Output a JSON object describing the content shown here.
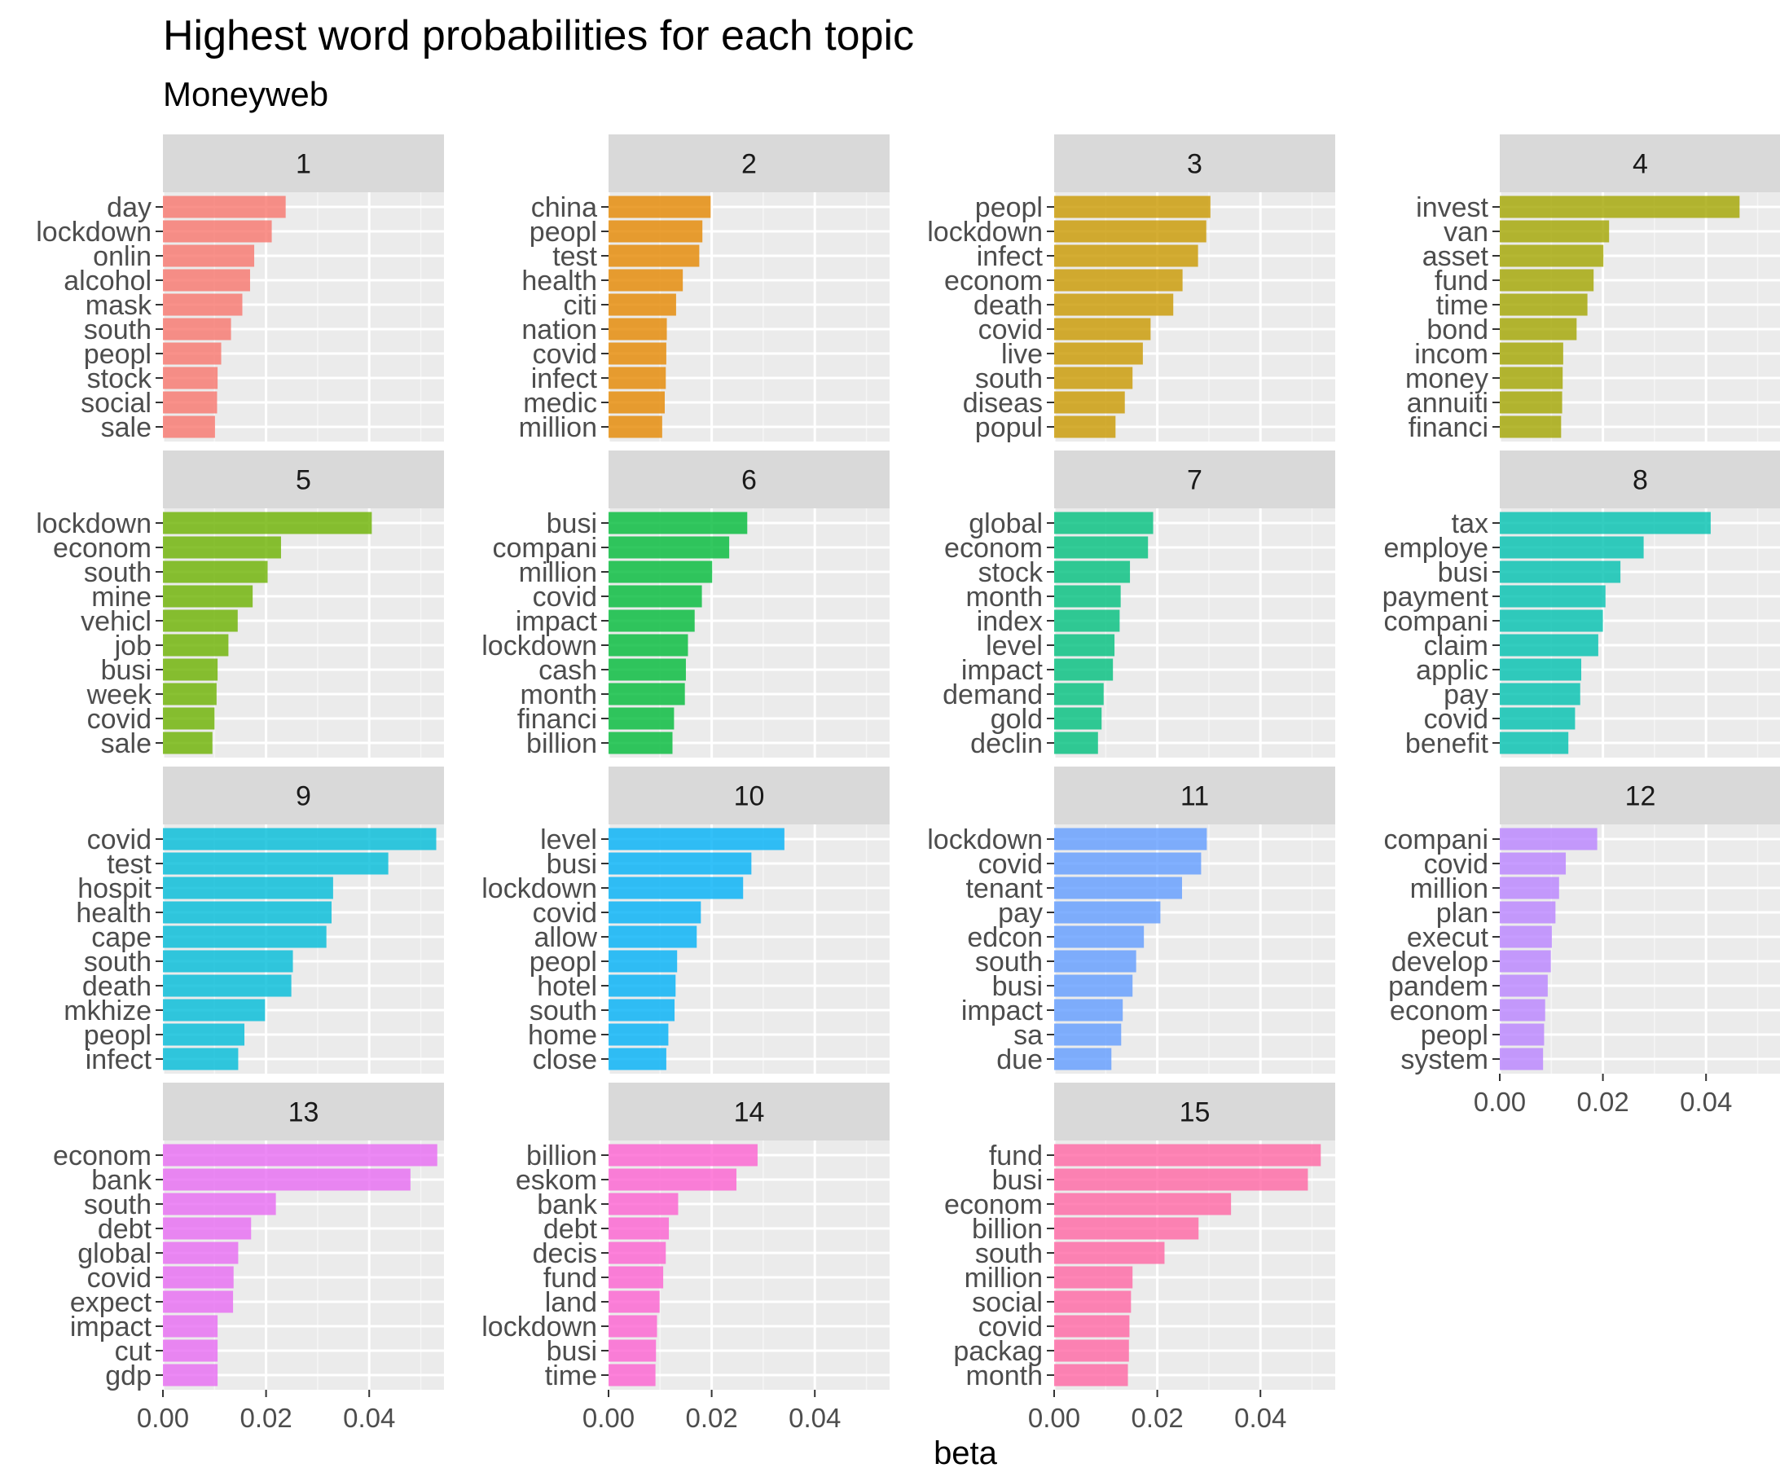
{
  "title": "Highest word probabilities for each topic",
  "subtitle": "Moneyweb",
  "chart_data": {
    "type": "bar",
    "orientation": "horizontal",
    "facet": "topic",
    "xlabel": "beta",
    "ylabel": "",
    "xlim": [
      0,
      0.0545
    ],
    "xticks": [
      0.0,
      0.02,
      0.04
    ],
    "xtick_labels": [
      "0.00",
      "0.02",
      "0.04"
    ],
    "grid": true,
    "facets": [
      {
        "topic": "1",
        "color": "#F8766D",
        "terms": [
          "day",
          "lockdown",
          "onlin",
          "alcohol",
          "mask",
          "south",
          "peopl",
          "stock",
          "social",
          "sale"
        ],
        "values": [
          0.0238,
          0.0211,
          0.0177,
          0.0169,
          0.0154,
          0.0132,
          0.0113,
          0.0106,
          0.0105,
          0.0101
        ]
      },
      {
        "topic": "2",
        "color": "#E58700",
        "terms": [
          "china",
          "peopl",
          "test",
          "health",
          "citi",
          "nation",
          "covid",
          "infect",
          "medic",
          "million"
        ],
        "values": [
          0.0198,
          0.0182,
          0.0176,
          0.0144,
          0.0131,
          0.0113,
          0.0112,
          0.0111,
          0.0109,
          0.0104
        ]
      },
      {
        "topic": "3",
        "color": "#C99800",
        "terms": [
          "peopl",
          "lockdown",
          "infect",
          "econom",
          "death",
          "covid",
          "live",
          "south",
          "diseas",
          "popul"
        ],
        "values": [
          0.0303,
          0.0295,
          0.0279,
          0.0249,
          0.0231,
          0.0187,
          0.0172,
          0.0152,
          0.0137,
          0.0119
        ]
      },
      {
        "topic": "4",
        "color": "#A3A500",
        "terms": [
          "invest",
          "van",
          "asset",
          "fund",
          "time",
          "bond",
          "incom",
          "money",
          "annuiti",
          "financi"
        ],
        "values": [
          0.0465,
          0.0212,
          0.0201,
          0.0182,
          0.017,
          0.0149,
          0.0123,
          0.0122,
          0.0121,
          0.0119
        ]
      },
      {
        "topic": "5",
        "color": "#6BB100",
        "terms": [
          "lockdown",
          "econom",
          "south",
          "mine",
          "vehicl",
          "job",
          "busi",
          "week",
          "covid",
          "sale"
        ],
        "values": [
          0.0405,
          0.0229,
          0.0203,
          0.0174,
          0.0145,
          0.0127,
          0.0106,
          0.0104,
          0.01,
          0.0096
        ]
      },
      {
        "topic": "6",
        "color": "#00BA38",
        "terms": [
          "busi",
          "compani",
          "million",
          "covid",
          "impact",
          "lockdown",
          "cash",
          "month",
          "financi",
          "billion"
        ],
        "values": [
          0.0269,
          0.0234,
          0.0201,
          0.0181,
          0.0167,
          0.0154,
          0.015,
          0.0148,
          0.0127,
          0.0124
        ]
      },
      {
        "topic": "7",
        "color": "#00BF7D",
        "terms": [
          "global",
          "econom",
          "stock",
          "month",
          "index",
          "level",
          "impact",
          "demand",
          "gold",
          "declin"
        ],
        "values": [
          0.0192,
          0.0182,
          0.0147,
          0.0129,
          0.0127,
          0.0117,
          0.0114,
          0.0096,
          0.0092,
          0.0085
        ]
      },
      {
        "topic": "8",
        "color": "#00C0AF",
        "terms": [
          "tax",
          "employe",
          "busi",
          "payment",
          "compani",
          "claim",
          "applic",
          "pay",
          "covid",
          "benefit"
        ],
        "values": [
          0.0409,
          0.0279,
          0.0234,
          0.0205,
          0.02,
          0.0191,
          0.0158,
          0.0156,
          0.0146,
          0.0133
        ]
      },
      {
        "topic": "9",
        "color": "#00BCD8",
        "terms": [
          "covid",
          "test",
          "hospit",
          "health",
          "cape",
          "south",
          "death",
          "mkhize",
          "peopl",
          "infect"
        ],
        "values": [
          0.053,
          0.0437,
          0.033,
          0.0327,
          0.0317,
          0.0252,
          0.0249,
          0.0198,
          0.0158,
          0.0146
        ]
      },
      {
        "topic": "10",
        "color": "#00B0F6",
        "terms": [
          "level",
          "busi",
          "lockdown",
          "covid",
          "allow",
          "peopl",
          "hotel",
          "south",
          "home",
          "close"
        ],
        "values": [
          0.0341,
          0.0277,
          0.0261,
          0.0179,
          0.0171,
          0.0133,
          0.013,
          0.0128,
          0.0116,
          0.0112
        ]
      },
      {
        "topic": "11",
        "color": "#619CFF",
        "terms": [
          "lockdown",
          "covid",
          "tenant",
          "pay",
          "edcon",
          "south",
          "busi",
          "impact",
          "sa",
          "due"
        ],
        "values": [
          0.0296,
          0.0285,
          0.0248,
          0.0206,
          0.0174,
          0.0159,
          0.0152,
          0.0133,
          0.013,
          0.0111
        ]
      },
      {
        "topic": "12",
        "color": "#B983FF",
        "terms": [
          "compani",
          "covid",
          "million",
          "plan",
          "execut",
          "develop",
          "pandem",
          "econom",
          "peopl",
          "system"
        ],
        "values": [
          0.0189,
          0.0128,
          0.0115,
          0.0108,
          0.0101,
          0.0099,
          0.0093,
          0.0088,
          0.0086,
          0.0084
        ]
      },
      {
        "topic": "13",
        "color": "#E76BF3",
        "terms": [
          "econom",
          "bank",
          "south",
          "debt",
          "global",
          "covid",
          "expect",
          "impact",
          "cut",
          "gdp"
        ],
        "values": [
          0.0532,
          0.048,
          0.0219,
          0.0171,
          0.0146,
          0.0137,
          0.0136,
          0.0106,
          0.0106,
          0.0106
        ]
      },
      {
        "topic": "14",
        "color": "#FD61D1",
        "terms": [
          "billion",
          "eskom",
          "bank",
          "debt",
          "decis",
          "fund",
          "land",
          "lockdown",
          "busi",
          "time"
        ],
        "values": [
          0.0289,
          0.0248,
          0.0135,
          0.0117,
          0.0111,
          0.0106,
          0.0099,
          0.0094,
          0.0092,
          0.0091
        ]
      },
      {
        "topic": "15",
        "color": "#FF67A4",
        "terms": [
          "fund",
          "busi",
          "econom",
          "billion",
          "south",
          "million",
          "social",
          "covid",
          "packag",
          "month"
        ],
        "values": [
          0.0517,
          0.0492,
          0.0343,
          0.028,
          0.0214,
          0.0152,
          0.0149,
          0.0146,
          0.0145,
          0.0143
        ]
      }
    ]
  }
}
